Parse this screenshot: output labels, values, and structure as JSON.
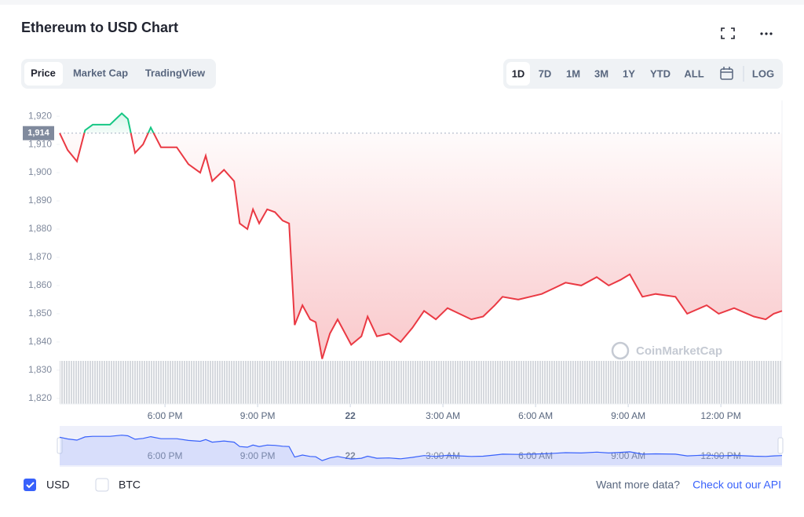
{
  "header": {
    "title": "Ethereum to USD Chart"
  },
  "tabs": [
    "Price",
    "Market Cap",
    "TradingView"
  ],
  "ranges": [
    "1D",
    "7D",
    "1M",
    "3M",
    "1Y",
    "YTD",
    "ALL",
    "LOG"
  ],
  "watermark": "CoinMarketCap",
  "currencies": [
    "USD",
    "BTC"
  ],
  "footer": {
    "prompt": "Want more data?",
    "link": "Check out our API"
  },
  "chart_data": {
    "type": "line",
    "x": [
      14.59,
      14.85,
      15.15,
      15.41,
      15.66,
      16.22,
      16.6,
      16.8,
      17.03,
      17.29,
      17.54,
      17.87,
      18.38,
      18.76,
      19.14,
      19.32,
      19.53,
      19.91,
      20.24,
      20.42,
      20.67,
      20.85,
      21.05,
      21.31,
      21.56,
      21.81,
      22.02,
      22.2,
      22.45,
      22.7,
      22.88,
      23.09,
      23.34,
      23.59,
      24.03,
      24.36,
      24.56,
      24.86,
      25.25,
      25.63,
      26.01,
      26.39,
      26.77,
      27.15,
      27.53,
      27.92,
      28.3,
      28.68,
      28.93,
      29.44,
      29.82,
      30.2,
      30.59,
      30.97,
      31.48,
      31.98,
      32.37,
      32.75,
      33.05,
      33.46,
      33.89,
      34.53,
      34.91,
      35.54,
      35.93,
      36.43,
      37.07,
      37.45,
      37.71,
      37.98
    ],
    "series": [
      {
        "name": "USD",
        "values": [
          1914,
          1908,
          1904,
          1915,
          1917,
          1917,
          1921,
          1919,
          1907,
          1910,
          1916,
          1909,
          1909,
          1903,
          1900,
          1906,
          1897,
          1901,
          1897,
          1882,
          1880,
          1887,
          1882,
          1887,
          1886,
          1883,
          1882,
          1846,
          1853,
          1848,
          1847,
          1834,
          1843,
          1848,
          1839,
          1842,
          1849,
          1842,
          1843,
          1840,
          1845,
          1851,
          1848,
          1852,
          1850,
          1848,
          1849,
          1853,
          1856,
          1855,
          1856,
          1857,
          1859,
          1861,
          1860,
          1863,
          1860,
          1862,
          1864,
          1856,
          1857,
          1856,
          1850,
          1853,
          1850,
          1852,
          1849,
          1848,
          1850,
          1851
        ]
      }
    ],
    "reference": {
      "value": 1914,
      "label": "1,914"
    },
    "up_color": "#16c784",
    "down_color": "#ea3943",
    "xlim": [
      14.59,
      37.98
    ],
    "xticks": [
      {
        "value": 18,
        "label": "6:00 PM"
      },
      {
        "value": 21,
        "label": "9:00 PM"
      },
      {
        "value": 24,
        "label": "22"
      },
      {
        "value": 27,
        "label": "3:00 AM"
      },
      {
        "value": 30,
        "label": "6:00 AM"
      },
      {
        "value": 33,
        "label": "9:00 AM"
      },
      {
        "value": 36,
        "label": "12:00 PM"
      }
    ],
    "ylim": [
      1818,
      1925.6
    ],
    "yticks": [
      {
        "value": 1820,
        "label": "1,820"
      },
      {
        "value": 1830,
        "label": "1,830"
      },
      {
        "value": 1840,
        "label": "1,840"
      },
      {
        "value": 1850,
        "label": "1,850"
      },
      {
        "value": 1860,
        "label": "1,860"
      },
      {
        "value": 1870,
        "label": "1,870"
      },
      {
        "value": 1880,
        "label": "1,880"
      },
      {
        "value": 1890,
        "label": "1,890"
      },
      {
        "value": 1900,
        "label": "1,900"
      },
      {
        "value": 1910,
        "label": "1,910"
      },
      {
        "value": 1920,
        "label": "1,920"
      }
    ]
  }
}
